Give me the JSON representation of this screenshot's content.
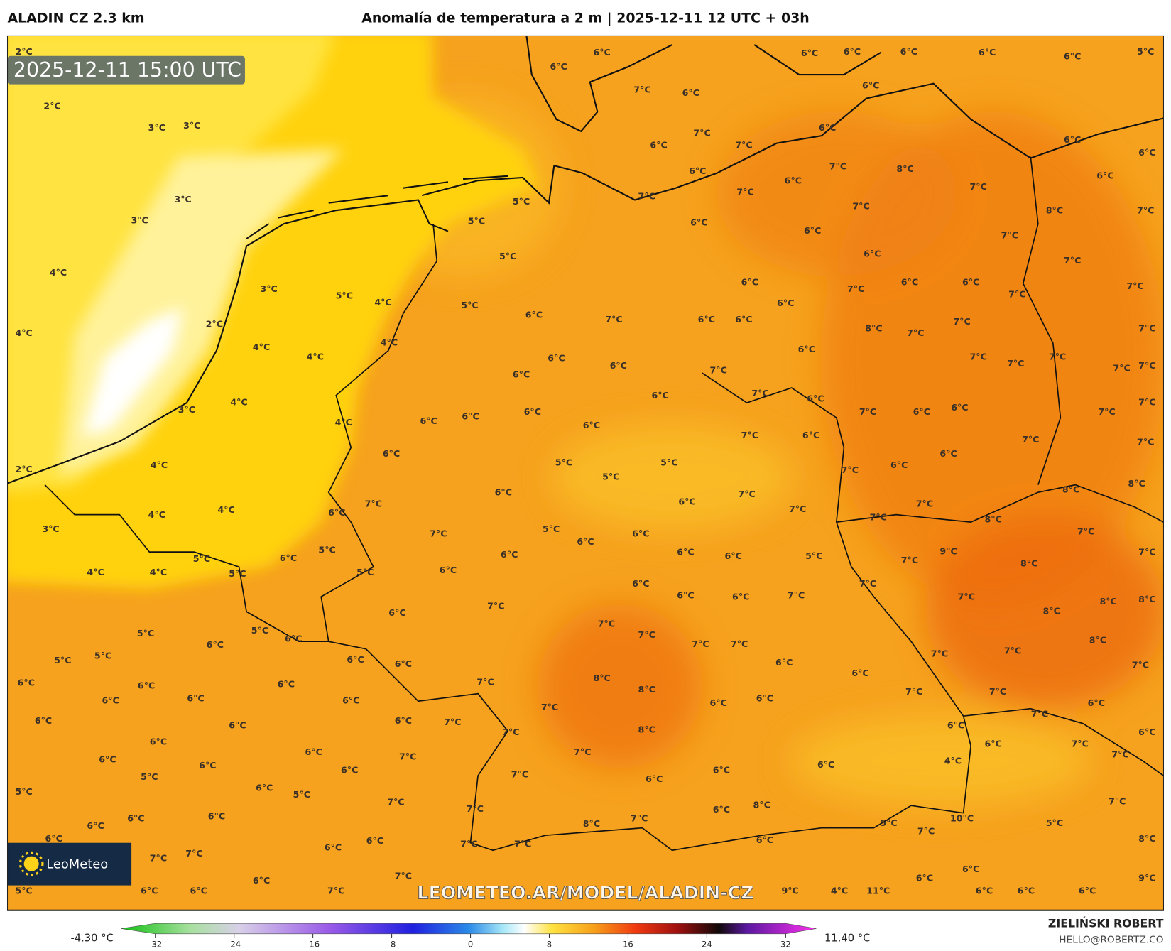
{
  "header": {
    "model": "ALADIN CZ 2.3 km",
    "title": "Anomalía de temperatura a 2 m | 2025-12-11 12 UTC + 03h"
  },
  "map": {
    "valid_time": "2025-12-11 15:00 UTC",
    "watermark": "LEOMETEO.AR/MODEL/ALADIN-CZ",
    "logo": "LeoMeteo",
    "labels": [
      "2°C",
      "2°C",
      "3°C",
      "3°C",
      "3°C",
      "3°C",
      "4°C",
      "4°C",
      "2°C",
      "3°C",
      "5°C",
      "4°C",
      "4°C",
      "4°C",
      "4°C",
      "4°C",
      "3°C",
      "4°C",
      "2°C",
      "4°C",
      "4°C",
      "4°C",
      "3°C",
      "4°C",
      "4°C",
      "5°C",
      "5°C",
      "6°C",
      "5°C",
      "6°C",
      "7°C",
      "5°C",
      "5°C",
      "5°C",
      "5°C",
      "5°C",
      "6°C",
      "6°C",
      "7°C",
      "6°C",
      "7°C",
      "6°C",
      "7°C",
      "6°C",
      "6°C",
      "6°C",
      "6°C",
      "6°C",
      "5°C",
      "6°C",
      "6°C",
      "7°C",
      "8°C",
      "7°C",
      "6°C",
      "7°C",
      "6°C",
      "7°C",
      "6°C",
      "7°C",
      "6°C",
      "6°C",
      "8°C",
      "7°C",
      "7°C",
      "7°C",
      "7°C",
      "6°C",
      "6°C",
      "6°C",
      "6°C",
      "6°C",
      "6°C",
      "6°C",
      "7°C",
      "6°C",
      "6°C",
      "6°C",
      "6°C",
      "7°C",
      "7°C",
      "6°C",
      "6°C",
      "7°C",
      "6°C",
      "6°C",
      "7°C",
      "8°C",
      "7°C",
      "7°C",
      "7°C",
      "7°C",
      "7°C",
      "7°C",
      "7°C",
      "7°C",
      "7°C",
      "7°C",
      "6°C",
      "6°C",
      "7°C",
      "6°C",
      "7°C",
      "6°C",
      "7°C",
      "7°C",
      "6°C",
      "6°C",
      "7°C",
      "6°C",
      "6°C",
      "6°C",
      "6°C",
      "6°C",
      "5°C",
      "5°C",
      "5°C",
      "6°C",
      "7°C",
      "6°C",
      "7°C",
      "7°C",
      "7°C",
      "8°C",
      "8°C",
      "8°C",
      "7°C",
      "5°C",
      "6°C",
      "6°C",
      "6°C",
      "6°C",
      "6°C",
      "6°C",
      "5°C",
      "7°C",
      "9°C",
      "8°C",
      "7°C",
      "7°C",
      "6°C",
      "7°C",
      "6°C",
      "6°C",
      "6°C",
      "7°C",
      "7°C",
      "7°C",
      "8°C",
      "8°C",
      "8°C",
      "8°C",
      "7°C",
      "7°C",
      "6°C",
      "6°C",
      "7°C",
      "7°C",
      "7°C",
      "7°C",
      "8°C",
      "8°C",
      "7°C",
      "7°C",
      "6°C",
      "6°C",
      "6°C",
      "5°C",
      "5°C",
      "5°C",
      "5°C",
      "6°C",
      "6°C",
      "6°C",
      "6°C",
      "6°C",
      "6°C",
      "6°C",
      "6°C",
      "6°C",
      "6°C",
      "6°C",
      "7°C",
      "7°C",
      "8°C",
      "6°C",
      "6°C",
      "7°C",
      "7°C",
      "7°C",
      "6°C",
      "7°C",
      "6°C",
      "6°C",
      "6°C",
      "7°C",
      "7°C",
      "4°C",
      "6°C",
      "6°C",
      "6°C",
      "7°C",
      "7°C",
      "7°C",
      "6°C",
      "6°C",
      "6°C",
      "6°C",
      "5°C",
      "5°C",
      "6°C",
      "5°C",
      "7°C",
      "7°C",
      "8°C",
      "7°C",
      "6°C",
      "8°C",
      "5°C",
      "7°C",
      "10°C",
      "5°C",
      "7°C",
      "8°C",
      "9°C",
      "6°C",
      "6°C",
      "6°C",
      "6°C",
      "6°C",
      "4°C",
      "11°C",
      "9°C",
      "6°C",
      "6°C",
      "6°C",
      "6°C",
      "6°C",
      "7°C",
      "7°C",
      "6°C",
      "6°C",
      "7°C",
      "7°C",
      "7°C",
      "6°C",
      "7°C",
      "6°C",
      "6°C",
      "5°C"
    ]
  },
  "colorbar": {
    "min_label": "-4.30 °C",
    "max_label": "11.40 °C",
    "ticks": [
      -32,
      -24,
      -16,
      -8,
      0,
      8,
      16,
      24,
      32
    ]
  },
  "credits": {
    "author": "ZIELIŃSKI ROBERT",
    "contact": "HELLO@ROBERTZ.CO"
  }
}
